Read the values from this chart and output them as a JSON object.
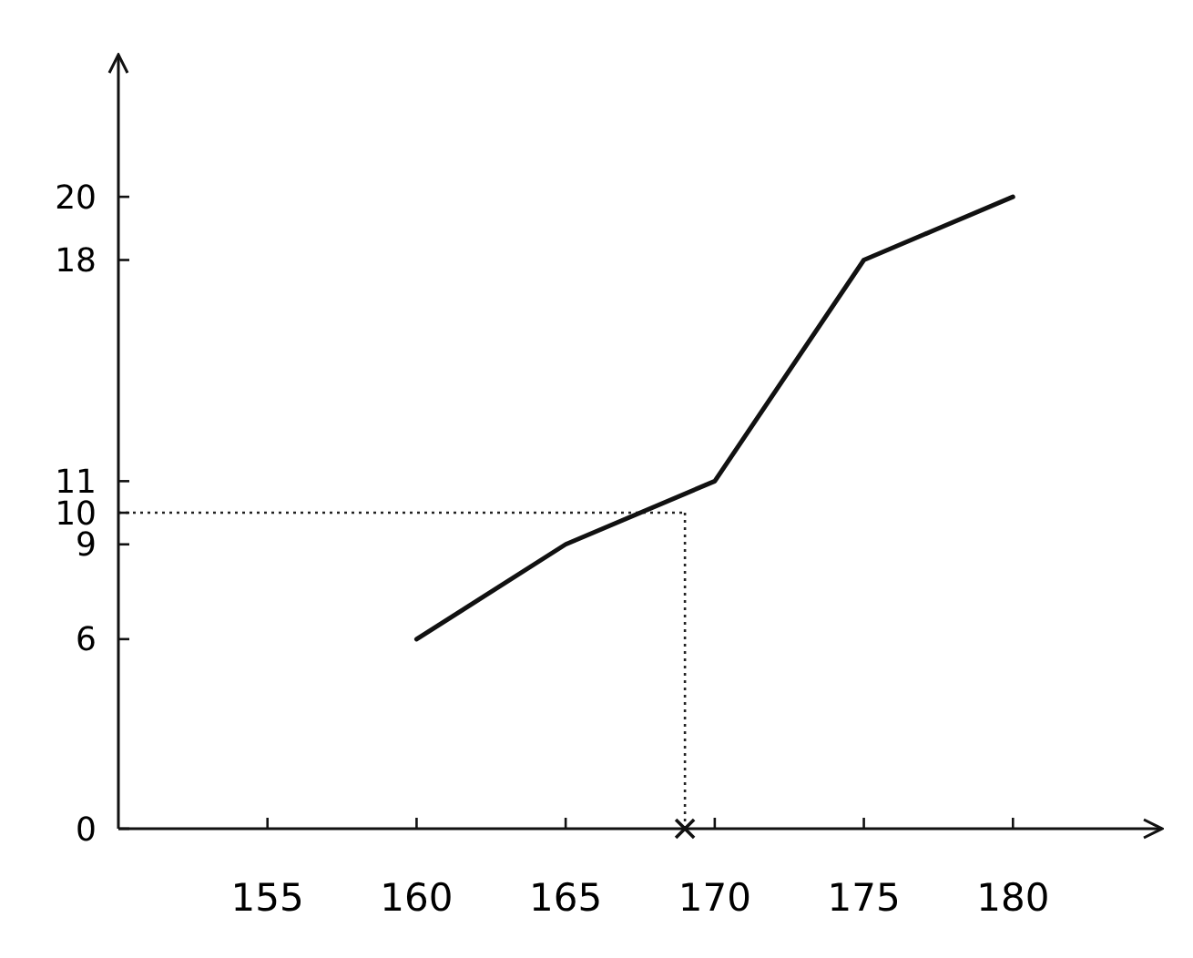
{
  "chart_data": {
    "type": "line",
    "x": [
      160,
      165,
      170,
      175,
      180
    ],
    "series": [
      {
        "color": "#111111",
        "values": [
          6,
          9,
          11,
          18,
          20
        ]
      }
    ],
    "xlim": [
      150,
      185
    ],
    "ylim": [
      0,
      24.5
    ],
    "xticks": [
      155,
      160,
      165,
      170,
      175,
      180
    ],
    "yticks": [
      0,
      6,
      9,
      10,
      11,
      18,
      20
    ],
    "ref_lines": [
      {
        "axis": "x",
        "value": 169,
        "line_style": "dotted"
      },
      {
        "axis": "y",
        "value": 10,
        "line_style": "dotted"
      }
    ],
    "marker": "none",
    "line_style": "solid",
    "grid": false
  }
}
